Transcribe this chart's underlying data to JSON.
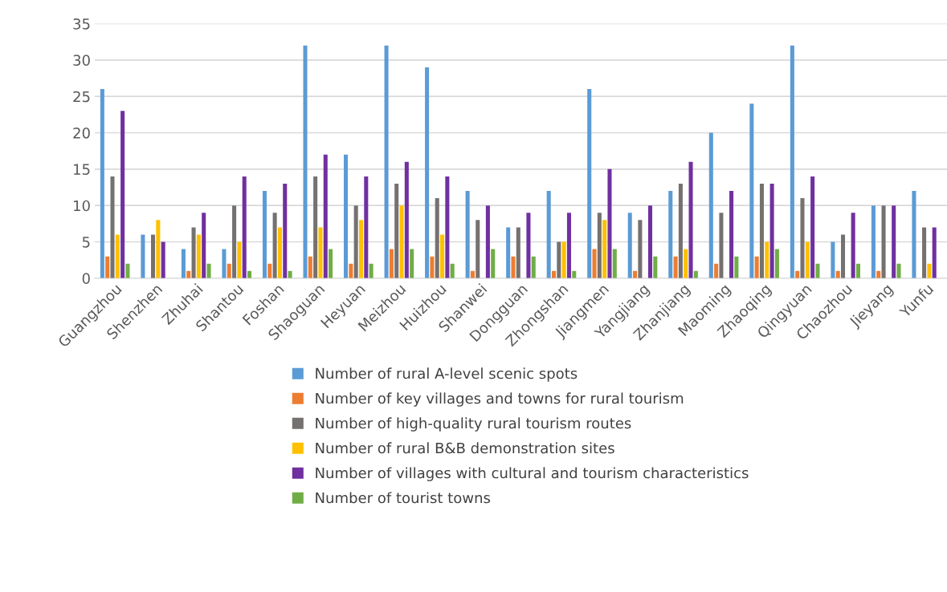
{
  "chart_data": {
    "type": "bar",
    "categories": [
      "Guangzhou",
      "Shenzhen",
      "Zhuhai",
      "Shantou",
      "Foshan",
      "Shaoguan",
      "Heyuan",
      "Meizhou",
      "Huizhou",
      "Shanwei",
      "Dongguan",
      "Zhongshan",
      "Jiangmen",
      "Yangjiang",
      "Zhanjiang",
      "Maoming",
      "Zhaoqing",
      "Qingyuan",
      "Chaozhou",
      "Jieyang",
      "Yunfu"
    ],
    "series": [
      {
        "name": "Number of rural A-level scenic spots",
        "color": "#5b9bd5",
        "values": [
          26,
          6,
          4,
          4,
          12,
          32,
          17,
          32,
          29,
          12,
          7,
          12,
          26,
          9,
          12,
          20,
          24,
          32,
          5,
          10,
          12
        ]
      },
      {
        "name": "Number of key villages and towns for rural tourism",
        "color": "#ed7d31",
        "values": [
          3,
          0,
          1,
          2,
          2,
          3,
          2,
          4,
          3,
          1,
          3,
          1,
          4,
          1,
          3,
          2,
          3,
          1,
          1,
          1,
          0
        ]
      },
      {
        "name": "Number of high-quality rural tourism routes",
        "color": "#767171",
        "values": [
          14,
          6,
          7,
          10,
          9,
          14,
          10,
          13,
          11,
          8,
          7,
          5,
          9,
          8,
          13,
          9,
          13,
          11,
          6,
          10,
          7
        ]
      },
      {
        "name": "Number of rural B&B demonstration sites",
        "color": "#ffc000",
        "values": [
          6,
          8,
          6,
          5,
          7,
          7,
          8,
          10,
          6,
          0,
          0,
          5,
          8,
          0,
          4,
          0,
          5,
          5,
          0,
          0,
          2
        ]
      },
      {
        "name": "Number of villages with cultural and tourism characteristics",
        "color": "#7030a0",
        "values": [
          23,
          5,
          9,
          14,
          13,
          17,
          14,
          16,
          14,
          10,
          9,
          9,
          15,
          10,
          16,
          12,
          13,
          14,
          9,
          10,
          7
        ]
      },
      {
        "name": "Number of tourist towns",
        "color": "#70ad47",
        "values": [
          2,
          0,
          2,
          1,
          1,
          4,
          2,
          4,
          2,
          4,
          3,
          1,
          4,
          3,
          1,
          3,
          4,
          2,
          2,
          2,
          null
        ]
      }
    ],
    "ylim": [
      0,
      35
    ],
    "yticks": [
      0,
      5,
      10,
      15,
      20,
      25,
      30,
      35
    ],
    "grid": "y",
    "legend": "bottom"
  }
}
